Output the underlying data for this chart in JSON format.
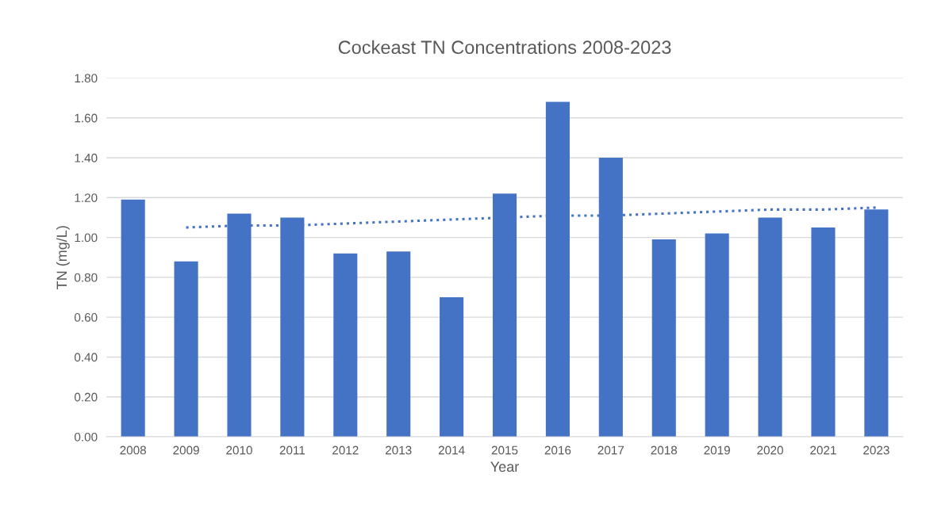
{
  "chart_data": {
    "type": "bar",
    "title": "Cockeast TN Concentrations 2008-2023",
    "xlabel": "Year",
    "ylabel": "TN (mg/L)",
    "categories": [
      "2008",
      "2009",
      "2010",
      "2011",
      "2012",
      "2013",
      "2014",
      "2015",
      "2016",
      "2017",
      "2018",
      "2019",
      "2020",
      "2021",
      "2023"
    ],
    "series": [
      {
        "color": "#4472c4",
        "values": [
          1.19,
          0.88,
          1.12,
          1.1,
          0.92,
          0.93,
          0.7,
          1.22,
          1.68,
          1.4,
          0.99,
          1.02,
          1.1,
          1.05,
          1.14
        ]
      },
      {
        "type": "line",
        "color": "#4472c4",
        "line_style": "dotted",
        "values": [
          null,
          1.05,
          1.06,
          1.06,
          1.07,
          1.08,
          1.09,
          1.1,
          1.11,
          1.11,
          1.12,
          1.13,
          1.14,
          1.14,
          1.15
        ]
      }
    ],
    "ylim": [
      0,
      1.8
    ],
    "yticks": [
      {
        "value": 0,
        "label": "0.00"
      },
      {
        "value": 0.2,
        "label": "0.20"
      },
      {
        "value": 0.4,
        "label": "0.40"
      },
      {
        "value": 0.6,
        "label": "0.60"
      },
      {
        "value": 0.8,
        "label": "0.80"
      },
      {
        "value": 1.0,
        "label": "1.00"
      },
      {
        "value": 1.2,
        "label": "1.20"
      },
      {
        "value": 1.4,
        "label": "1.40"
      },
      {
        "value": 1.6,
        "label": "1.60"
      },
      {
        "value": 1.8,
        "label": "1.80"
      }
    ],
    "grid": "y"
  }
}
